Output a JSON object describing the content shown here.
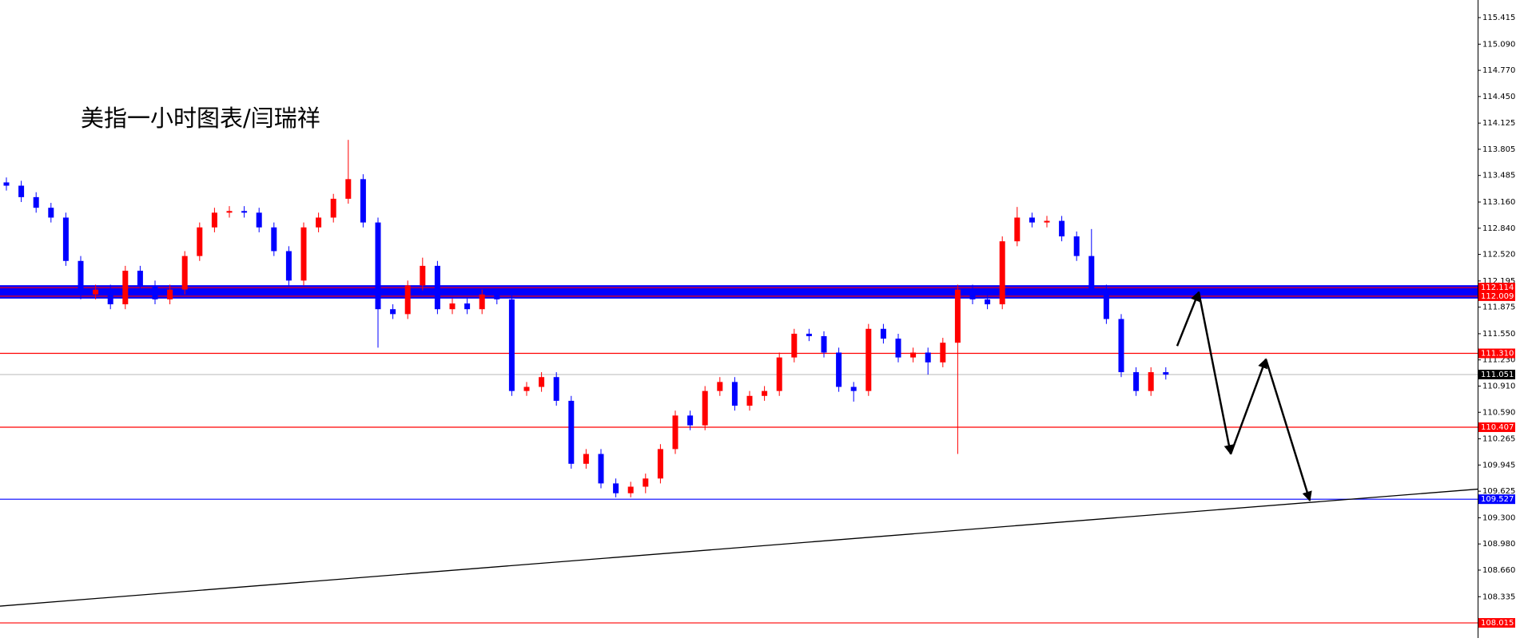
{
  "chart_data": {
    "type": "candlestick",
    "title": "美指一小时图表/闫瑞祥",
    "open": [
      113.4,
      113.36,
      113.22,
      113.09,
      112.97,
      112.44,
      112.03,
      112.09,
      111.91,
      112.32,
      112.14,
      111.97,
      112.09,
      112.5,
      112.85,
      113.03,
      113.05,
      113.03,
      112.85,
      112.56,
      112.2,
      112.85,
      112.97,
      113.2,
      113.44,
      112.91,
      111.85,
      111.79,
      112.14,
      112.38,
      111.85,
      111.92,
      111.85,
      112.03,
      111.97,
      110.85,
      110.9,
      111.02,
      110.73,
      109.96,
      110.08,
      109.72,
      109.6,
      109.68,
      109.78,
      110.14,
      110.55,
      110.43,
      110.85,
      110.96,
      110.67,
      110.79,
      110.85,
      111.26,
      111.55,
      111.52,
      111.32,
      110.9,
      110.85,
      111.61,
      111.49,
      111.26,
      111.32,
      111.2,
      111.44,
      112.09,
      111.97,
      111.91,
      112.68,
      112.97,
      112.91,
      112.93,
      112.74,
      112.5,
      112.09,
      111.73,
      111.08,
      110.85,
      111.08
    ],
    "high": [
      113.46,
      113.42,
      113.28,
      113.15,
      113.03,
      112.5,
      112.15,
      112.15,
      112.38,
      112.38,
      112.2,
      112.15,
      112.56,
      112.91,
      113.09,
      113.11,
      113.11,
      113.09,
      112.91,
      112.62,
      112.91,
      113.03,
      113.26,
      113.92,
      113.5,
      112.97,
      111.91,
      112.2,
      112.48,
      112.44,
      111.98,
      111.98,
      112.09,
      112.09,
      112.03,
      110.96,
      111.08,
      111.08,
      110.79,
      110.14,
      110.14,
      109.78,
      109.74,
      109.84,
      110.2,
      110.61,
      110.61,
      110.91,
      111.02,
      111.02,
      110.85,
      110.91,
      111.32,
      111.61,
      111.61,
      111.58,
      111.38,
      110.96,
      111.67,
      111.67,
      111.55,
      111.38,
      111.38,
      111.5,
      112.15,
      112.15,
      112.03,
      112.74,
      113.1,
      113.03,
      112.99,
      112.99,
      112.8,
      112.83,
      112.15,
      111.79,
      111.14,
      111.14,
      111.14
    ],
    "low": [
      113.3,
      113.16,
      113.03,
      112.91,
      112.38,
      111.97,
      111.97,
      111.85,
      111.85,
      112.08,
      111.91,
      111.91,
      112.03,
      112.44,
      112.79,
      112.97,
      112.97,
      112.79,
      112.5,
      112.14,
      112.14,
      112.79,
      112.91,
      113.14,
      112.85,
      111.38,
      111.73,
      111.73,
      112.08,
      111.79,
      111.79,
      111.79,
      111.79,
      111.91,
      110.79,
      110.79,
      110.84,
      110.67,
      109.9,
      109.9,
      109.66,
      109.55,
      109.55,
      109.6,
      109.72,
      110.08,
      110.37,
      110.37,
      110.79,
      110.61,
      110.61,
      110.73,
      110.79,
      111.2,
      111.46,
      111.26,
      110.84,
      110.72,
      110.79,
      111.43,
      111.2,
      111.2,
      111.05,
      111.14,
      110.08,
      111.91,
      111.85,
      111.85,
      112.62,
      112.85,
      112.85,
      112.68,
      112.44,
      112.03,
      111.67,
      111.02,
      110.79,
      110.79,
      110.99
    ],
    "close": [
      113.36,
      113.22,
      113.09,
      112.97,
      112.44,
      112.03,
      112.09,
      111.91,
      112.32,
      112.14,
      111.97,
      112.09,
      112.5,
      112.85,
      113.03,
      113.05,
      113.03,
      112.85,
      112.56,
      112.2,
      112.85,
      112.97,
      113.2,
      113.44,
      112.91,
      111.85,
      111.79,
      112.14,
      112.38,
      111.85,
      111.92,
      111.85,
      112.03,
      111.97,
      110.85,
      110.9,
      111.02,
      110.73,
      109.96,
      110.08,
      109.72,
      109.6,
      109.68,
      109.78,
      110.14,
      110.55,
      110.43,
      110.85,
      110.96,
      110.67,
      110.79,
      110.85,
      111.26,
      111.55,
      111.52,
      111.32,
      110.9,
      110.85,
      111.61,
      111.49,
      111.26,
      111.32,
      111.2,
      111.44,
      112.09,
      111.97,
      111.91,
      112.68,
      112.97,
      112.91,
      112.93,
      112.74,
      112.5,
      112.09,
      111.73,
      111.08,
      110.85,
      111.08,
      111.05
    ],
    "up_color": "#ff0000",
    "down_color": "#0000ff",
    "ylim": [
      107.83,
      115.63
    ],
    "yticks": [
      115.415,
      {
        "value": 115.09,
        "label": "115.090"
      },
      {
        "value": 114.77,
        "label": "114.770"
      },
      {
        "value": 114.45,
        "label": "114.450"
      },
      114.125,
      113.805,
      113.485,
      {
        "value": 113.16,
        "label": "113.160"
      },
      {
        "value": 112.84,
        "label": "112.840"
      },
      {
        "value": 112.52,
        "label": "112.520"
      },
      112.195,
      111.875,
      {
        "value": 111.55,
        "label": "111.550"
      },
      {
        "value": 111.23,
        "label": "111.230"
      },
      {
        "value": 110.91,
        "label": "110.910"
      },
      {
        "value": 110.59,
        "label": "110.590"
      },
      110.265,
      109.945,
      109.625,
      {
        "value": 109.3,
        "label": "109.300"
      },
      {
        "value": 108.98,
        "label": "108.980"
      },
      {
        "value": 108.66,
        "label": "108.660"
      },
      108.335
    ],
    "levels": [
      {
        "value": 112.114,
        "label": "112.114",
        "color": "#ff0000"
      },
      {
        "value": 112.009,
        "label": "112.009",
        "color": "#ff0000"
      },
      {
        "value": 111.31,
        "label": "111.310",
        "color": "#ff0000"
      },
      {
        "value": 111.051,
        "label": "111.051",
        "color": "#000000"
      },
      {
        "value": 110.407,
        "label": "110.407",
        "color": "#ff0000"
      },
      {
        "value": 109.527,
        "label": "109.527",
        "color": "#0000ff"
      },
      {
        "value": 108.015,
        "label": "108.015",
        "color": "#ff0000"
      }
    ],
    "band_color": "#0000ff",
    "current_line_color": "#c0c0c0",
    "trendline": {
      "values": [
        108.22,
        109.65
      ],
      "color": "#000000"
    },
    "projection": {
      "values": [
        111.4,
        112.06,
        110.08,
        111.24,
        109.51
      ],
      "color": "#000000"
    }
  }
}
